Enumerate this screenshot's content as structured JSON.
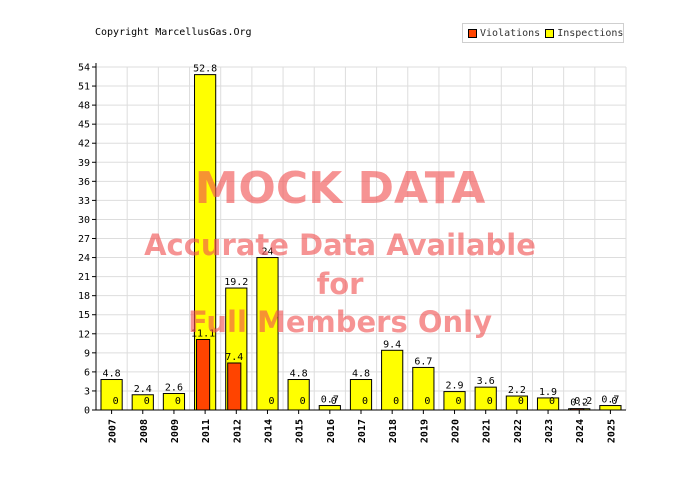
{
  "header": {
    "copyright": "Copyright MarcellusGas.Org"
  },
  "watermark": {
    "line1": "MOCK DATA",
    "line2": "Accurate Data Available",
    "line3": "for",
    "line4": "Full Members Only"
  },
  "colors": {
    "violations": "#ff4400",
    "inspections": "#ffff00",
    "grid": "#dddddd"
  },
  "chart_data": {
    "type": "bar",
    "title": "",
    "xlabel": "",
    "ylabel": "",
    "ylim": [
      0,
      54
    ],
    "yticks": [
      0,
      3,
      6,
      9,
      12,
      15,
      18,
      21,
      24,
      27,
      30,
      33,
      36,
      39,
      42,
      45,
      48,
      51,
      54
    ],
    "grid": true,
    "legend_position": "top-right",
    "categories": [
      "2007",
      "2008",
      "2009",
      "2011",
      "2012",
      "2014",
      "2015",
      "2016",
      "2017",
      "2018",
      "2019",
      "2020",
      "2021",
      "2022",
      "2023",
      "2024",
      "2025"
    ],
    "series": [
      {
        "name": "Violations",
        "color": "#ff4400",
        "values": [
          0,
          0,
          0,
          11.1,
          7.4,
          0,
          0,
          0,
          0,
          0,
          0,
          0,
          0,
          0,
          0,
          0.2,
          0
        ],
        "labels": [
          "0",
          "0",
          "0",
          "11.1",
          "7.4",
          "0",
          "0",
          "0",
          "0",
          "0",
          "0",
          "0",
          "0",
          "0",
          "0",
          "0.2",
          "0"
        ]
      },
      {
        "name": "Inspections",
        "color": "#ffff00",
        "values": [
          4.8,
          2.4,
          2.6,
          52.8,
          19.2,
          24,
          4.8,
          0.7,
          4.8,
          9.4,
          6.7,
          2.9,
          3.6,
          2.2,
          1.9,
          0.2,
          0.7
        ],
        "labels": [
          "4.8",
          "2.4",
          "2.6",
          "52.8",
          "19.2",
          "24",
          "4.8",
          "0.7",
          "4.8",
          "9.4",
          "6.7",
          "2.9",
          "3.6",
          "2.2",
          "1.9",
          "0.2",
          "0.7"
        ]
      }
    ]
  }
}
